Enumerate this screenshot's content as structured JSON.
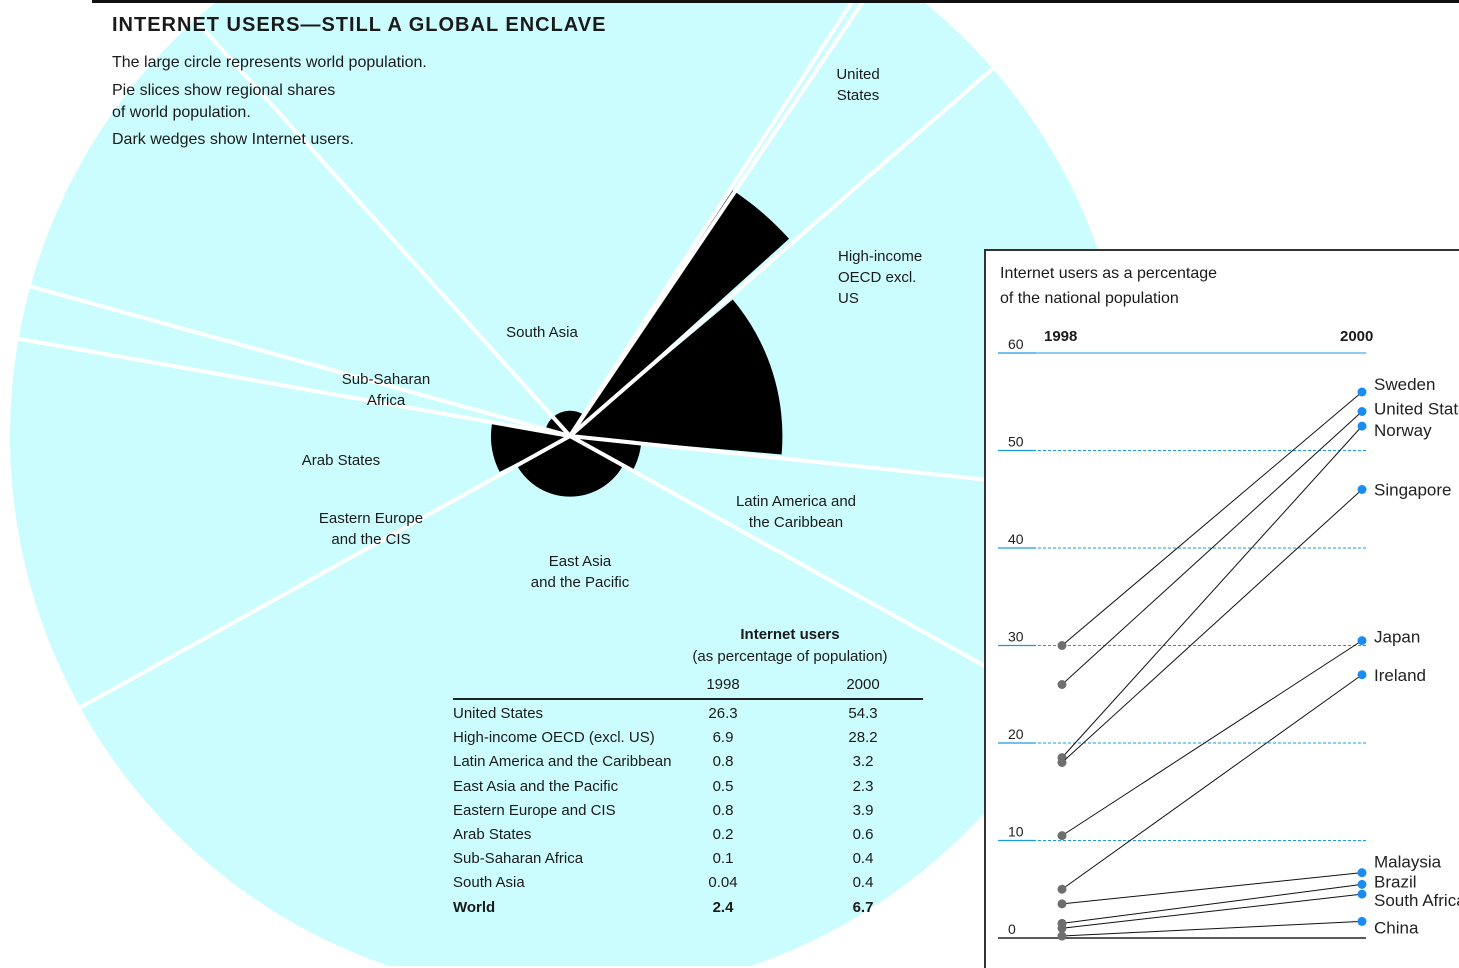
{
  "title": "INTERNET USERS—STILL A GLOBAL ENCLAVE",
  "notes": [
    "The large circle represents world population.",
    "Pie slices show regional shares\nof world population.",
    "Dark wedges show Internet users."
  ],
  "colors": {
    "circle": "#ccfdfe",
    "wedge": "#000000",
    "line_blue": "#1a9be6",
    "marker_gray": "#6e6e6e",
    "marker_blue": "#1a8cf0"
  },
  "chart_data": [
    {
      "type": "pie",
      "regions": [
        {
          "name": "United States",
          "label": "United\nStates",
          "users_1998": 26.3,
          "users_2000": 54.3
        },
        {
          "name": "High-income OECD (excl. US)",
          "label": "High-income\nOECD excl.\nUS",
          "users_1998": 6.9,
          "users_2000": 28.2
        },
        {
          "name": "Latin America and the Caribbean",
          "label": "Latin America and\nthe Caribbean",
          "users_1998": 0.8,
          "users_2000": 3.2
        },
        {
          "name": "East Asia and the Pacific",
          "label": "East Asia\nand the Pacific",
          "users_1998": 0.5,
          "users_2000": 2.3
        },
        {
          "name": "Eastern Europe and CIS",
          "label": "Eastern Europe\nand the CIS",
          "users_1998": 0.8,
          "users_2000": 3.9
        },
        {
          "name": "Arab States",
          "label": "Arab States",
          "users_1998": 0.2,
          "users_2000": 0.6
        },
        {
          "name": "Sub-Saharan Africa",
          "label": "Sub-Saharan\nAfrica",
          "users_1998": 0.1,
          "users_2000": 0.4
        },
        {
          "name": "South Asia",
          "label": "South Asia",
          "users_1998": 0.04,
          "users_2000": 0.4
        }
      ],
      "table": {
        "header": "Internet users",
        "subheader": "(as percentage of population)",
        "columns": [
          "1998",
          "2000"
        ],
        "rows": [
          {
            "name": "United States",
            "v1998": "26.3",
            "v2000": "54.3"
          },
          {
            "name": "High-income OECD (excl. US)",
            "v1998": "6.9",
            "v2000": "28.2"
          },
          {
            "name": "Latin America and the Caribbean",
            "v1998": "0.8",
            "v2000": "3.2"
          },
          {
            "name": "East Asia and the Pacific",
            "v1998": "0.5",
            "v2000": "2.3"
          },
          {
            "name": "Eastern Europe and CIS",
            "v1998": "0.8",
            "v2000": "3.9"
          },
          {
            "name": "Arab States",
            "v1998": "0.2",
            "v2000": "0.6"
          },
          {
            "name": "Sub-Saharan Africa",
            "v1998": "0.1",
            "v2000": "0.4"
          },
          {
            "name": "South Asia",
            "v1998": "0.04",
            "v2000": "0.4"
          },
          {
            "name": "World",
            "v1998": "2.4",
            "v2000": "6.7",
            "bold": true
          }
        ]
      }
    },
    {
      "type": "line",
      "title": "Internet users as a percentage\nof the national population",
      "x": [
        "1998",
        "2000"
      ],
      "ylim": [
        0,
        60
      ],
      "yticks": [
        0,
        10,
        20,
        30,
        40,
        50,
        60
      ],
      "series": [
        {
          "name": "Sweden",
          "values": [
            30,
            56
          ]
        },
        {
          "name": "United States",
          "values": [
            26,
            54
          ]
        },
        {
          "name": "Norway",
          "values": [
            18.5,
            52.5
          ]
        },
        {
          "name": "Singapore",
          "values": [
            18,
            46
          ]
        },
        {
          "name": "Japan",
          "values": [
            10.5,
            30.5
          ]
        },
        {
          "name": "Ireland",
          "values": [
            5,
            27
          ]
        },
        {
          "name": "Malaysia",
          "values": [
            3.5,
            6.7
          ]
        },
        {
          "name": "Brazil",
          "values": [
            1.5,
            5.5
          ]
        },
        {
          "name": "South Africa",
          "values": [
            1,
            4.5
          ]
        },
        {
          "name": "China",
          "values": [
            0.2,
            1.7
          ]
        }
      ]
    }
  ]
}
